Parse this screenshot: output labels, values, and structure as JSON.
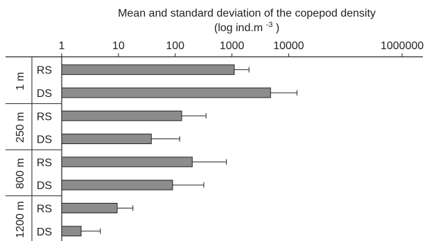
{
  "chart_data": {
    "type": "bar",
    "orientation": "horizontal",
    "title": "Mean and standard deviation of the copepod density",
    "subtitle": "(log ind.m",
    "subtitle_superscript": "-3",
    "subtitle_suffix": ")",
    "x_scale": "log",
    "xlim": [
      1,
      1000000
    ],
    "x_ticks": [
      1,
      10,
      100,
      1000,
      10000,
      1000000
    ],
    "x_tick_labels": [
      "1",
      "10",
      "100",
      "1000",
      "10000",
      "1000000"
    ],
    "axis_position": "top",
    "bar_color": "#8c8c8c",
    "bar_edge_color": "#222222",
    "groups": [
      {
        "label": "1 m",
        "bars": [
          {
            "label": "RS",
            "mean": 1100,
            "sd_upper": 2000
          },
          {
            "label": "DS",
            "mean": 4800,
            "sd_upper": 14000
          }
        ]
      },
      {
        "label": "250 m",
        "bars": [
          {
            "label": "RS",
            "mean": 130,
            "sd_upper": 350
          },
          {
            "label": "DS",
            "mean": 38,
            "sd_upper": 120
          }
        ]
      },
      {
        "label": "800 m",
        "bars": [
          {
            "label": "RS",
            "mean": 200,
            "sd_upper": 800
          },
          {
            "label": "DS",
            "mean": 90,
            "sd_upper": 320
          }
        ]
      },
      {
        "label": "1200 m",
        "bars": [
          {
            "label": "RS",
            "mean": 9.5,
            "sd_upper": 18
          },
          {
            "label": "DS",
            "mean": 2.2,
            "sd_upper": 4.8
          }
        ]
      }
    ]
  }
}
